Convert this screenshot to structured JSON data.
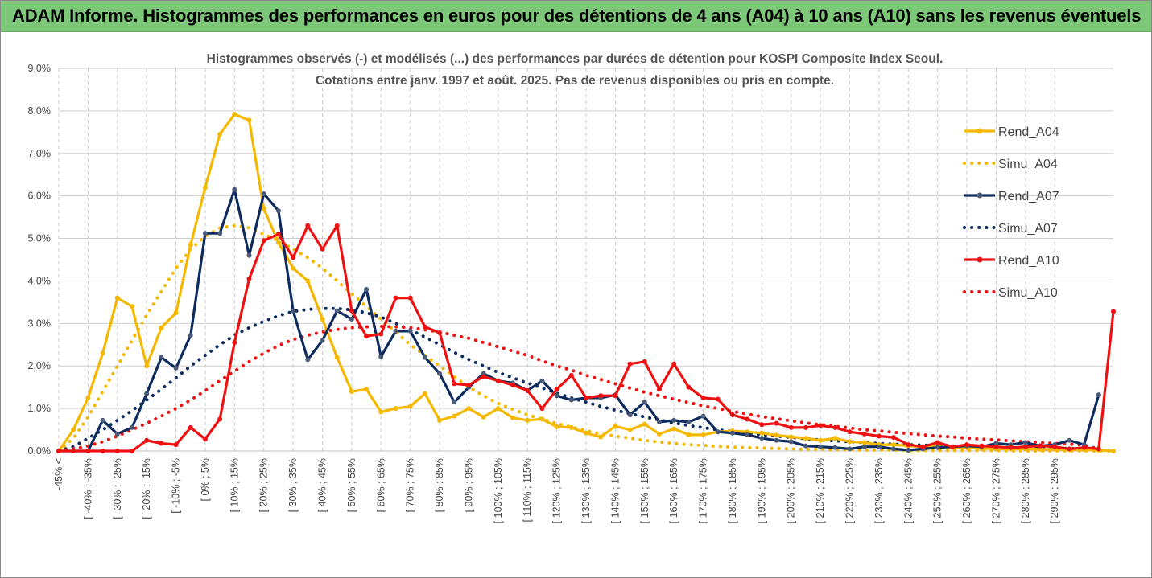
{
  "banner": {
    "title": "ADAM Informe. Histogrammes des performances en euros pour des détentions de 4 ans (A04) à 10 ans (A10) sans les revenus éventuels"
  },
  "colors": {
    "A04": "#f5b800",
    "A07": "#0d2b5e",
    "A10": "#ee1111",
    "banner": "#7dc878",
    "grid": "#cfcfcf"
  },
  "chart_data": {
    "type": "line",
    "title": "Histogrammes observés (-) et modélisés (...) des performances par durées de détention pour KOSPI Composite Index Seoul.",
    "subtitle": "Cotations entre janv. 1997 et août. 2025. Pas de revenus disponibles ou pris en compte.",
    "ylim": [
      0,
      9
    ],
    "y_ticks": [
      "0,0%",
      "1,0%",
      "2,0%",
      "3,0%",
      "4,0%",
      "5,0%",
      "6,0%",
      "7,0%",
      "8,0%",
      "9,0%"
    ],
    "x_tick_labels": [
      "-45% <",
      "[ -40% ; -35%",
      "[ -30% ; -25%",
      "[ -20% ; -15%",
      "[ -10% ; -5%",
      "[ 0% ; 5%",
      "[ 10% ; 15%",
      "[ 20% ; 25%",
      "[ 30% ; 35%",
      "[ 40% ; 45%",
      "[ 50% ; 55%",
      "[ 60% ; 65%",
      "[ 70% ; 75%",
      "[ 80% ; 85%",
      "[ 90% ; 95%",
      "[ 100% ; 105%",
      "[ 110% ; 115%",
      "[ 120% ; 125%",
      "[ 130% ; 135%",
      "[ 140% ; 145%",
      "[ 150% ; 155%",
      "[ 160% ; 165%",
      "[ 170% ; 175%",
      "[ 180% ; 185%",
      "[ 190% ; 195%",
      "[ 200% ; 205%",
      "[ 210% ; 215%",
      "[ 220% ; 225%",
      "[ 230% ; 235%",
      "[ 240% ; 245%",
      "[ 250% ; 255%",
      "[ 260% ; 265%",
      "[ 270% ; 275%",
      "[ 280% ; 285%",
      "[ 290% ; 295%"
    ],
    "legend": {
      "position": "right"
    },
    "series": [
      {
        "name": "Rend_A04",
        "key": "A04",
        "style": "solid",
        "values": [
          0.0,
          0.5,
          1.25,
          2.3,
          3.6,
          3.4,
          2.0,
          2.9,
          3.25,
          4.85,
          6.2,
          7.45,
          7.92,
          7.78,
          5.7,
          4.9,
          4.3,
          4.0,
          3.1,
          2.2,
          1.4,
          1.45,
          0.92,
          1.0,
          1.05,
          1.35,
          0.72,
          0.82,
          1.0,
          0.8,
          1.0,
          0.78,
          0.72,
          0.75,
          0.57,
          0.55,
          0.42,
          0.33,
          0.58,
          0.5,
          0.63,
          0.4,
          0.52,
          0.38,
          0.38,
          0.45,
          0.47,
          0.45,
          0.42,
          0.37,
          0.33,
          0.3,
          0.25,
          0.3,
          0.22,
          0.2,
          0.15,
          0.15,
          0.12,
          0.1,
          0.1,
          0.08,
          0.08,
          0.06,
          0.05,
          0.05,
          0.05,
          0.04,
          0.04,
          0.03,
          0.03,
          0.02,
          0.0
        ]
      },
      {
        "name": "Simu_A04",
        "key": "A04",
        "style": "dotted",
        "values": [
          0.0,
          0.3,
          0.8,
          1.4,
          2.0,
          2.6,
          3.2,
          3.75,
          4.3,
          4.75,
          5.05,
          5.25,
          5.3,
          5.25,
          5.1,
          4.95,
          4.75,
          4.55,
          4.3,
          4.0,
          3.7,
          3.4,
          3.1,
          2.8,
          2.5,
          2.25,
          2.0,
          1.75,
          1.5,
          1.3,
          1.12,
          0.98,
          0.85,
          0.75,
          0.65,
          0.56,
          0.48,
          0.4,
          0.35,
          0.3,
          0.25,
          0.21,
          0.18,
          0.15,
          0.13,
          0.11,
          0.09,
          0.08,
          0.07,
          0.06,
          0.05,
          0.04,
          0.04,
          0.03,
          0.03,
          0.02,
          0.02,
          0.02,
          0.01,
          0.01,
          0.01,
          0.01,
          0.01,
          0.01,
          0.01,
          0.0,
          0.0,
          0.0,
          0.0,
          0.0,
          0.0,
          0.0,
          0.0
        ]
      },
      {
        "name": "Rend_A07",
        "key": "A07",
        "style": "solid",
        "values": [
          0.0,
          0.0,
          0.0,
          0.72,
          0.4,
          0.55,
          1.35,
          2.2,
          1.95,
          2.72,
          5.12,
          5.12,
          6.15,
          4.6,
          6.05,
          5.65,
          3.3,
          2.15,
          2.6,
          3.3,
          3.1,
          3.8,
          2.22,
          2.82,
          2.82,
          2.2,
          1.82,
          1.15,
          1.5,
          1.82,
          1.65,
          1.6,
          1.42,
          1.65,
          1.3,
          1.2,
          1.25,
          1.25,
          1.32,
          0.85,
          1.15,
          0.68,
          0.72,
          0.68,
          0.82,
          0.45,
          0.42,
          0.38,
          0.3,
          0.25,
          0.22,
          0.12,
          0.1,
          0.08,
          0.05,
          0.1,
          0.1,
          0.05,
          0.02,
          0.05,
          0.08,
          0.1,
          0.12,
          0.1,
          0.18,
          0.15,
          0.2,
          0.12,
          0.15,
          0.25,
          0.15,
          1.32
        ]
      },
      {
        "name": "Simu_A07",
        "key": "A07",
        "style": "dotted",
        "values": [
          0.0,
          0.1,
          0.3,
          0.5,
          0.72,
          0.95,
          1.2,
          1.45,
          1.72,
          2.0,
          2.25,
          2.5,
          2.72,
          2.9,
          3.05,
          3.18,
          3.28,
          3.33,
          3.35,
          3.35,
          3.32,
          3.25,
          3.15,
          3.0,
          2.85,
          2.68,
          2.5,
          2.32,
          2.15,
          2.0,
          1.85,
          1.72,
          1.6,
          1.48,
          1.36,
          1.25,
          1.15,
          1.05,
          0.96,
          0.88,
          0.8,
          0.73,
          0.66,
          0.6,
          0.55,
          0.5,
          0.46,
          0.42,
          0.38,
          0.35,
          0.32,
          0.29,
          0.26,
          0.24,
          0.22,
          0.2,
          0.18,
          0.16,
          0.15,
          0.14,
          0.13,
          0.12,
          0.11,
          0.1,
          0.09,
          0.08,
          0.08,
          0.07,
          0.06,
          0.06,
          0.05,
          0.05
        ]
      },
      {
        "name": "Rend_A10",
        "key": "A10",
        "style": "solid",
        "values": [
          0.0,
          0.0,
          0.0,
          0.0,
          0.0,
          0.0,
          0.25,
          0.18,
          0.15,
          0.55,
          0.28,
          0.75,
          2.55,
          4.05,
          4.95,
          5.1,
          4.55,
          5.3,
          4.75,
          5.3,
          3.3,
          2.7,
          2.75,
          3.6,
          3.6,
          2.92,
          2.78,
          1.58,
          1.55,
          1.75,
          1.65,
          1.55,
          1.42,
          1.0,
          1.45,
          1.78,
          1.25,
          1.3,
          1.3,
          2.05,
          2.1,
          1.45,
          2.05,
          1.5,
          1.25,
          1.22,
          0.85,
          0.75,
          0.62,
          0.65,
          0.55,
          0.55,
          0.6,
          0.55,
          0.45,
          0.4,
          0.35,
          0.32,
          0.15,
          0.1,
          0.2,
          0.1,
          0.15,
          0.12,
          0.1,
          0.08,
          0.1,
          0.12,
          0.1,
          0.05,
          0.08,
          0.05,
          3.28
        ]
      },
      {
        "name": "Simu_A10",
        "key": "A10",
        "style": "dotted",
        "values": [
          0.0,
          0.05,
          0.12,
          0.22,
          0.35,
          0.5,
          0.65,
          0.82,
          1.0,
          1.2,
          1.42,
          1.65,
          1.88,
          2.1,
          2.3,
          2.48,
          2.62,
          2.72,
          2.8,
          2.86,
          2.9,
          2.92,
          2.93,
          2.92,
          2.9,
          2.85,
          2.8,
          2.72,
          2.65,
          2.55,
          2.45,
          2.35,
          2.25,
          2.12,
          2.0,
          1.9,
          1.78,
          1.68,
          1.58,
          1.48,
          1.38,
          1.3,
          1.22,
          1.14,
          1.06,
          1.0,
          0.93,
          0.87,
          0.81,
          0.76,
          0.71,
          0.66,
          0.62,
          0.58,
          0.54,
          0.5,
          0.47,
          0.44,
          0.41,
          0.38,
          0.35,
          0.33,
          0.3,
          0.28,
          0.26,
          0.24,
          0.22,
          0.2,
          0.18,
          0.16,
          0.14,
          0.05
        ]
      }
    ]
  }
}
